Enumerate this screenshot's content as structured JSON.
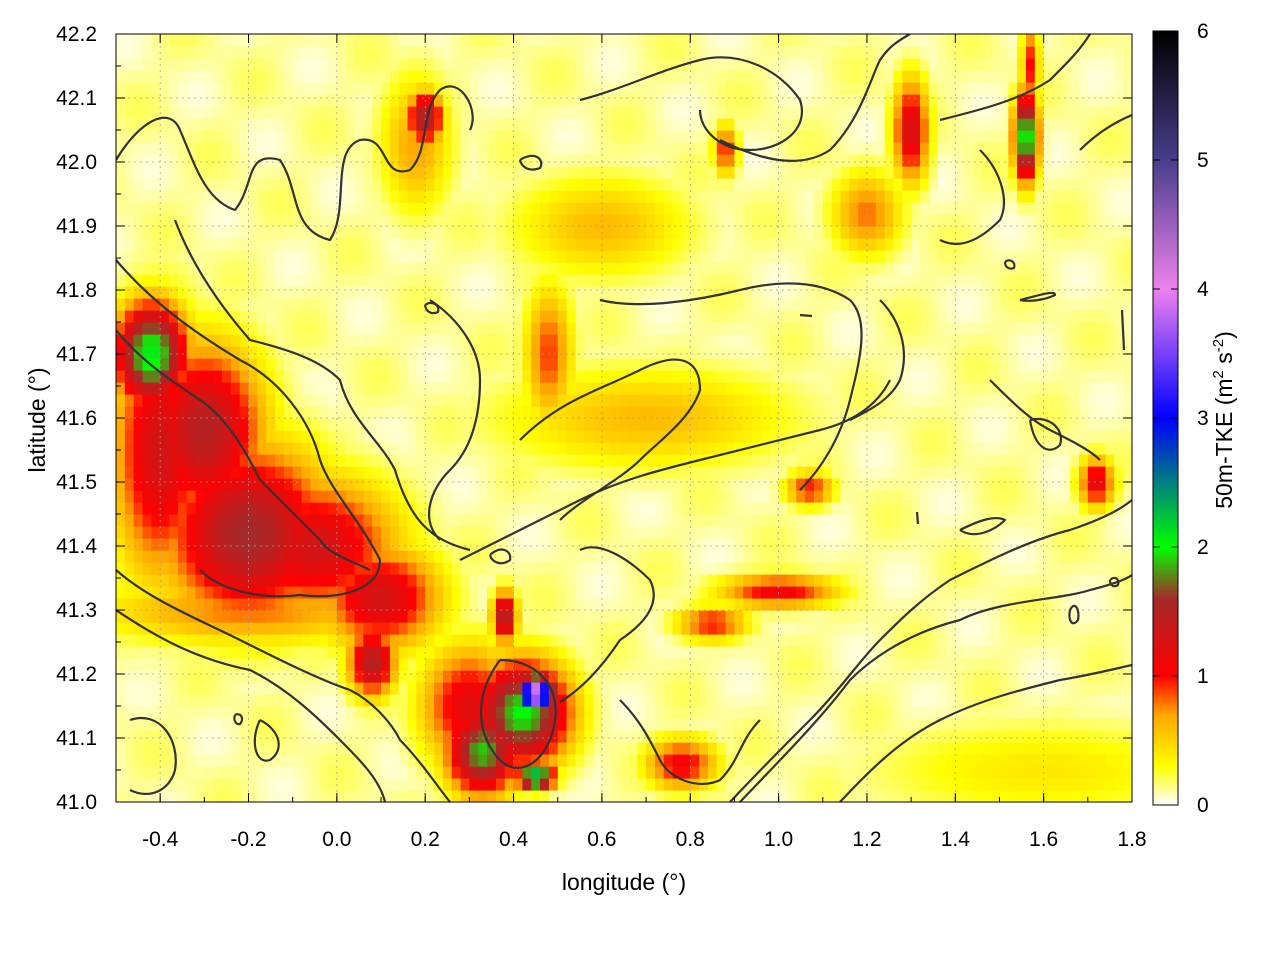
{
  "chart_data": {
    "type": "heatmap",
    "xlabel": "longitude (°)",
    "ylabel": "latitude (°)",
    "xlim": [
      -0.5,
      1.8
    ],
    "ylim": [
      41.0,
      42.2
    ],
    "x_ticks": [
      "-0.4",
      "-0.2",
      "0.0",
      "0.2",
      "0.4",
      "0.6",
      "0.8",
      "1.0",
      "1.2",
      "1.4",
      "1.6",
      "1.8"
    ],
    "y_ticks": [
      "41.0",
      "41.1",
      "41.2",
      "41.3",
      "41.4",
      "41.5",
      "41.6",
      "41.7",
      "41.8",
      "41.9",
      "42.0",
      "42.1",
      "42.2"
    ],
    "grid": true,
    "colorbar": {
      "label": "50m-TKE (m² s⁻²)",
      "label_main": "50m-TKE (m",
      "label_sup1": "2",
      "label_mid": " s",
      "label_sup2": "-2",
      "label_end": ")",
      "range": [
        0,
        6
      ],
      "ticks": [
        "0",
        "1",
        "2",
        "3",
        "4",
        "5",
        "6"
      ],
      "stops": [
        {
          "v": 0.0,
          "color": "#ffffff"
        },
        {
          "v": 0.3,
          "color": "#ffff00"
        },
        {
          "v": 0.7,
          "color": "#ffa500"
        },
        {
          "v": 1.0,
          "color": "#ff0000"
        },
        {
          "v": 1.6,
          "color": "#a52a2a"
        },
        {
          "v": 2.0,
          "color": "#00ff00"
        },
        {
          "v": 3.0,
          "color": "#0000ff"
        },
        {
          "v": 4.0,
          "color": "#ee82ee"
        },
        {
          "v": 5.0,
          "color": "#483d8b"
        },
        {
          "v": 6.0,
          "color": "#000000"
        }
      ]
    },
    "field_hotspots": [
      {
        "lon": -0.42,
        "lat": 41.7,
        "tke": 2.1,
        "slon": 0.06,
        "slat": 0.06
      },
      {
        "lon": -0.3,
        "lat": 41.58,
        "tke": 1.5,
        "slon": 0.1,
        "slat": 0.1
      },
      {
        "lon": -0.2,
        "lat": 41.42,
        "tke": 1.6,
        "slon": 0.14,
        "slat": 0.1
      },
      {
        "lon": -0.05,
        "lat": 41.4,
        "tke": 1.3,
        "slon": 0.14,
        "slat": 0.08
      },
      {
        "lon": -0.4,
        "lat": 41.55,
        "tke": 1.3,
        "slon": 0.08,
        "slat": 0.15
      },
      {
        "lon": 0.1,
        "lat": 41.32,
        "tke": 1.3,
        "slon": 0.1,
        "slat": 0.06
      },
      {
        "lon": 0.08,
        "lat": 41.22,
        "tke": 1.5,
        "slon": 0.04,
        "slat": 0.04
      },
      {
        "lon": -0.2,
        "lat": 41.3,
        "tke": 0.8,
        "slon": 0.25,
        "slat": 0.04
      },
      {
        "lon": 0.45,
        "lat": 41.17,
        "tke": 4.2,
        "slon": 0.03,
        "slat": 0.02
      },
      {
        "lon": 0.42,
        "lat": 41.14,
        "tke": 2.0,
        "slon": 0.08,
        "slat": 0.06
      },
      {
        "lon": 0.33,
        "lat": 41.08,
        "tke": 1.9,
        "slon": 0.06,
        "slat": 0.05
      },
      {
        "lon": 0.45,
        "lat": 41.04,
        "tke": 2.5,
        "slon": 0.03,
        "slat": 0.015
      },
      {
        "lon": 0.3,
        "lat": 41.15,
        "tke": 1.2,
        "slon": 0.08,
        "slat": 0.07
      },
      {
        "lon": 0.38,
        "lat": 41.29,
        "tke": 1.6,
        "slon": 0.02,
        "slat": 0.03
      },
      {
        "lon": 0.2,
        "lat": 42.07,
        "tke": 1.6,
        "slon": 0.03,
        "slat": 0.03
      },
      {
        "lon": 0.18,
        "lat": 42.03,
        "tke": 0.7,
        "slon": 0.06,
        "slat": 0.08
      },
      {
        "lon": 0.48,
        "lat": 41.7,
        "tke": 0.9,
        "slon": 0.04,
        "slat": 0.08
      },
      {
        "lon": 0.7,
        "lat": 41.6,
        "tke": 0.6,
        "slon": 0.25,
        "slat": 0.06
      },
      {
        "lon": 1.07,
        "lat": 41.49,
        "tke": 1.0,
        "slon": 0.04,
        "slat": 0.02
      },
      {
        "lon": 1.3,
        "lat": 42.05,
        "tke": 1.3,
        "slon": 0.03,
        "slat": 0.06
      },
      {
        "lon": 1.56,
        "lat": 42.04,
        "tke": 2.2,
        "slon": 0.02,
        "slat": 0.05
      },
      {
        "lon": 1.57,
        "lat": 42.15,
        "tke": 1.0,
        "slon": 0.015,
        "slat": 0.05
      },
      {
        "lon": 0.88,
        "lat": 42.02,
        "tke": 1.0,
        "slon": 0.02,
        "slat": 0.03
      },
      {
        "lon": 1.2,
        "lat": 41.92,
        "tke": 0.8,
        "slon": 0.06,
        "slat": 0.05
      },
      {
        "lon": 1.0,
        "lat": 41.33,
        "tke": 1.1,
        "slon": 0.1,
        "slat": 0.02
      },
      {
        "lon": 0.85,
        "lat": 41.28,
        "tke": 1.0,
        "slon": 0.06,
        "slat": 0.02
      },
      {
        "lon": 0.78,
        "lat": 41.06,
        "tke": 1.1,
        "slon": 0.06,
        "slat": 0.03
      },
      {
        "lon": 1.72,
        "lat": 41.5,
        "tke": 1.2,
        "slon": 0.03,
        "slat": 0.03
      },
      {
        "lon": 0.6,
        "lat": 41.9,
        "tke": 0.6,
        "slon": 0.15,
        "slat": 0.06
      },
      {
        "lon": 1.6,
        "lat": 41.05,
        "tke": 0.4,
        "slon": 0.3,
        "slat": 0.06
      }
    ]
  }
}
